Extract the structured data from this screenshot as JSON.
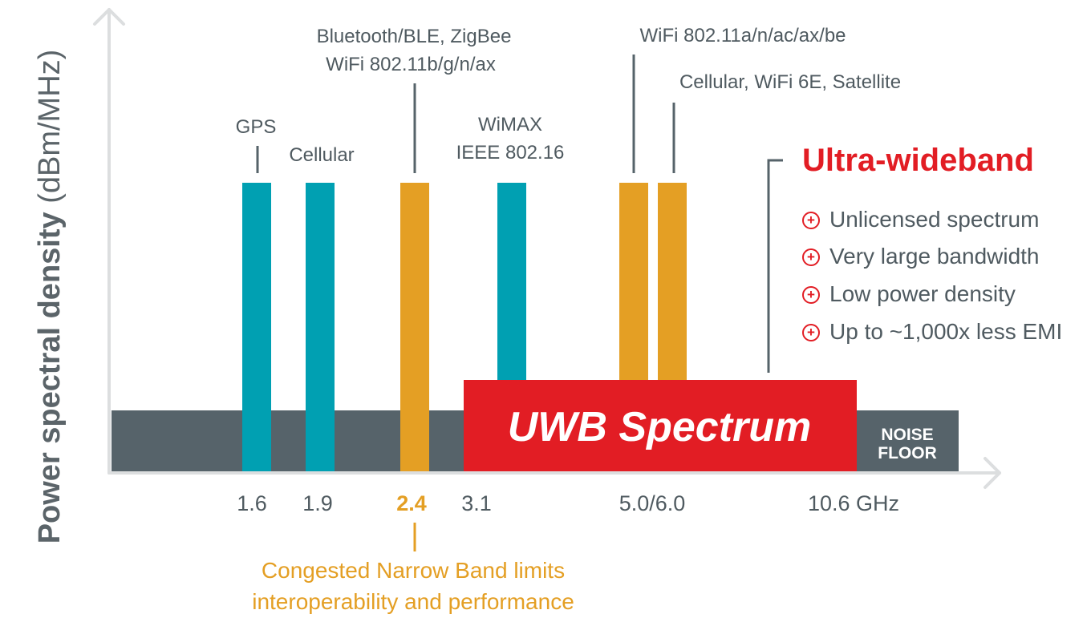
{
  "axes": {
    "y_label_bold": "Power spectral density",
    "y_label_unit": "(dBm/MHz)"
  },
  "colors": {
    "narrowband_teal": "#00a0b2",
    "congested_orange": "#e49f24",
    "uwb_red": "#e21d24",
    "noise_floor": "#56636a",
    "axis_gray": "#dcdedf",
    "text_gray": "#4f5a60"
  },
  "x_ticks": [
    {
      "label": "1.6",
      "highlight": false
    },
    {
      "label": "1.9",
      "highlight": false
    },
    {
      "label": "2.4",
      "highlight": true
    },
    {
      "label": "3.1",
      "highlight": false
    },
    {
      "label": "5.0/6.0",
      "highlight": false
    },
    {
      "label": "10.6 GHz",
      "highlight": false
    }
  ],
  "band_labels": [
    {
      "lines": [
        "GPS"
      ]
    },
    {
      "lines": [
        "Cellular"
      ]
    },
    {
      "lines": [
        "Bluetooth/BLE, ZigBee",
        "WiFi 802.11b/g/n/ax"
      ]
    },
    {
      "lines": [
        "WiMAX",
        "IEEE 802.16"
      ]
    },
    {
      "lines": [
        "WiFi 802.11a/n/ac/ax/be"
      ]
    },
    {
      "lines": [
        "Cellular, WiFi 6E, Satellite"
      ]
    }
  ],
  "bands": [
    {
      "name": "GPS",
      "color": "#00a0b2"
    },
    {
      "name": "Cellular",
      "color": "#00a0b2"
    },
    {
      "name": "Bluetooth/BLE, ZigBee, WiFi 802.11b/g/n/ax",
      "color": "#e49f24"
    },
    {
      "name": "WiMAX",
      "color": "#00a0b2"
    },
    {
      "name": "WiFi 802.11a/n/ac/ax/be",
      "color": "#e49f24"
    },
    {
      "name": "Cellular, WiFi 6E, Satellite",
      "color": "#e49f24"
    }
  ],
  "uwb_box": {
    "label": "UWB Spectrum"
  },
  "noise_floor": {
    "line1": "NOISE",
    "line2": "FLOOR"
  },
  "uwb_panel": {
    "title": "Ultra-wideband",
    "benefits": [
      "Unlicensed spectrum",
      "Very large bandwidth",
      "Low power density",
      "Up to ~1,000x less EMI"
    ]
  },
  "congested_note": {
    "line1": "Congested Narrow Band limits",
    "line2": "interoperability and performance"
  }
}
